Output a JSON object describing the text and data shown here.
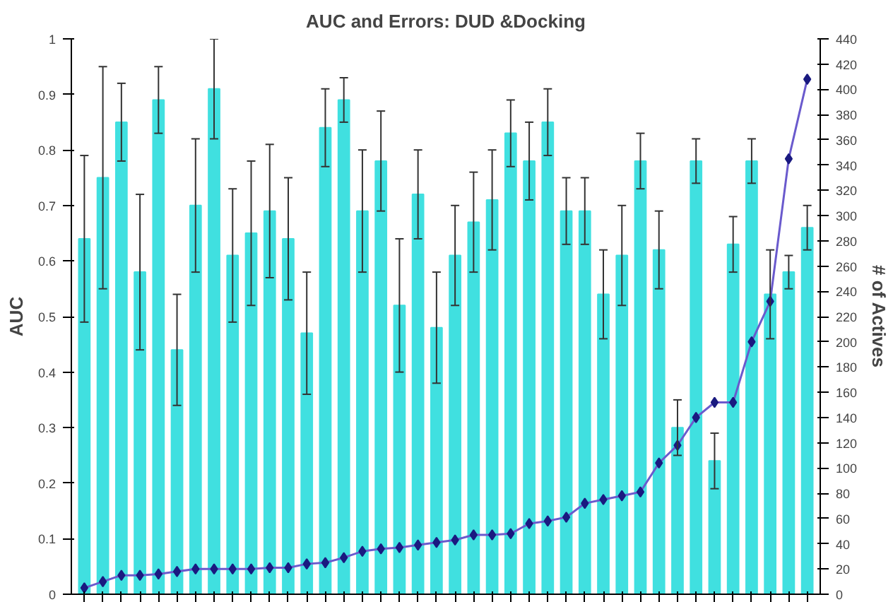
{
  "chart_data": {
    "type": "bar",
    "title": "AUC and Errors: DUD &Docking",
    "ylabel": "AUC",
    "y2label": "# of Actives",
    "categories": [
      null,
      null,
      null,
      null,
      null,
      null,
      null,
      null,
      null,
      null,
      null,
      null,
      null,
      null,
      null,
      null,
      null,
      null,
      null,
      null,
      null,
      null,
      null,
      null,
      null,
      null,
      null,
      null,
      null,
      null,
      null,
      null,
      null,
      null,
      null,
      null,
      null,
      null,
      null,
      null
    ],
    "series": [
      {
        "color": "#40e0e0",
        "values": [
          0.64,
          0.75,
          0.85,
          0.58,
          0.89,
          0.44,
          0.7,
          0.91,
          0.61,
          0.65,
          0.69,
          0.64,
          0.47,
          0.84,
          0.89,
          0.69,
          0.78,
          0.52,
          0.72,
          0.48,
          0.61,
          0.67,
          0.71,
          0.83,
          0.78,
          0.85,
          0.69,
          0.69,
          0.54,
          0.61,
          0.78,
          0.62,
          0.3,
          0.78,
          0.24,
          0.63,
          0.78,
          0.54,
          0.58,
          0.66
        ],
        "errors": [
          0.15,
          0.2,
          0.07,
          0.14,
          0.06,
          0.1,
          0.12,
          0.09,
          0.12,
          0.13,
          0.12,
          0.11,
          0.11,
          0.07,
          0.04,
          0.11,
          0.09,
          0.12,
          0.08,
          0.1,
          0.09,
          0.09,
          0.09,
          0.06,
          0.07,
          0.06,
          0.06,
          0.06,
          0.08,
          0.09,
          0.05,
          0.07,
          0.05,
          0.04,
          0.05,
          0.05,
          0.04,
          0.08,
          0.03,
          0.04
        ]
      },
      {
        "type": "line",
        "axis": "y2",
        "color": "#6a5acd",
        "marker": "diamond",
        "values": [
          5,
          10,
          15,
          15,
          16,
          18,
          20,
          20,
          20,
          20,
          21,
          21,
          24,
          25,
          29,
          34,
          36,
          37,
          39,
          41,
          43,
          47,
          47,
          48,
          56,
          58,
          61,
          72,
          75,
          78,
          81,
          104,
          118,
          140,
          152,
          152,
          200,
          232,
          345,
          408
        ]
      }
    ],
    "ylim": [
      0,
      1
    ],
    "yticks": [
      0,
      0.1,
      0.2,
      0.3,
      0.4,
      0.5,
      0.6,
      0.7,
      0.8,
      0.9,
      1
    ],
    "y2lim": [
      0,
      440
    ],
    "y2ticks": [
      0,
      20,
      40,
      60,
      80,
      100,
      120,
      140,
      160,
      180,
      200,
      220,
      240,
      260,
      280,
      300,
      320,
      340,
      360,
      380,
      400,
      420,
      440
    ],
    "grid": false
  }
}
